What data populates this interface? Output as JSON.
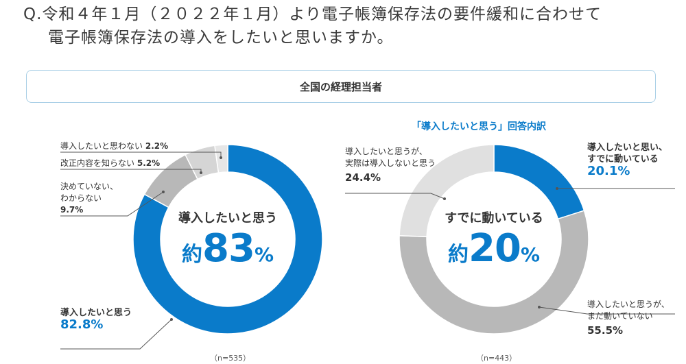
{
  "question": {
    "line1": "Q.令和４年１月（２０２２年１月）より電子帳簿保存法の要件緩和に合わせて",
    "line2": "電子帳簿保存法の導入をしたいと思いますか。"
  },
  "banner": "全国の経理担当者",
  "colors": {
    "blue": "#0a7bca",
    "gray_mid": "#b8b8b8",
    "gray_light": "#d5d5d5",
    "gray_lighter": "#e6e6e6"
  },
  "chart_data": [
    {
      "type": "pie",
      "variant": "donut",
      "slices": [
        {
          "label": "導入したいと思う",
          "value": 82.8,
          "display": "82.8%",
          "color": "#0a7bca"
        },
        {
          "label": "決めていない、わからない",
          "label_lines": [
            "決めていない、",
            "わからない"
          ],
          "value": 9.7,
          "display": "9.7%",
          "color": "#b8b8b8"
        },
        {
          "label": "改正内容を知らない",
          "value": 5.2,
          "display": "5.2%",
          "color": "#d5d5d5"
        },
        {
          "label": "導入したいと思わない",
          "value": 2.2,
          "display": "2.2%",
          "color": "#e6e6e6"
        }
      ],
      "center_sub": "導入したいと思う",
      "center_pre": "約",
      "center_num": "83",
      "center_pct": "%",
      "n": "（n=535）"
    },
    {
      "type": "pie",
      "variant": "donut",
      "title": "「導入したいと思う」回答内訳",
      "slices": [
        {
          "label": "導入したいと思い、すでに動いている",
          "label_lines": [
            "導入したいと思い、",
            "すでに動いている"
          ],
          "value": 20.1,
          "display": "20.1%",
          "color": "#0a7bca"
        },
        {
          "label": "導入したいと思うが、まだ動いていない",
          "label_lines": [
            "導入したいと思うが、",
            "まだ動いていない"
          ],
          "value": 55.5,
          "display": "55.5%",
          "color": "#b8b8b8"
        },
        {
          "label": "導入したいと思うが、実際は導入しないと思う",
          "label_lines": [
            "導入したいと思うが、",
            "実際は導入しないと思う"
          ],
          "value": 24.4,
          "display": "24.4%",
          "color": "#e0e0e0"
        }
      ],
      "center_sub": "すでに動いている",
      "center_pre": "約",
      "center_num": "20",
      "center_pct": "%",
      "n": "（n=443）"
    }
  ]
}
